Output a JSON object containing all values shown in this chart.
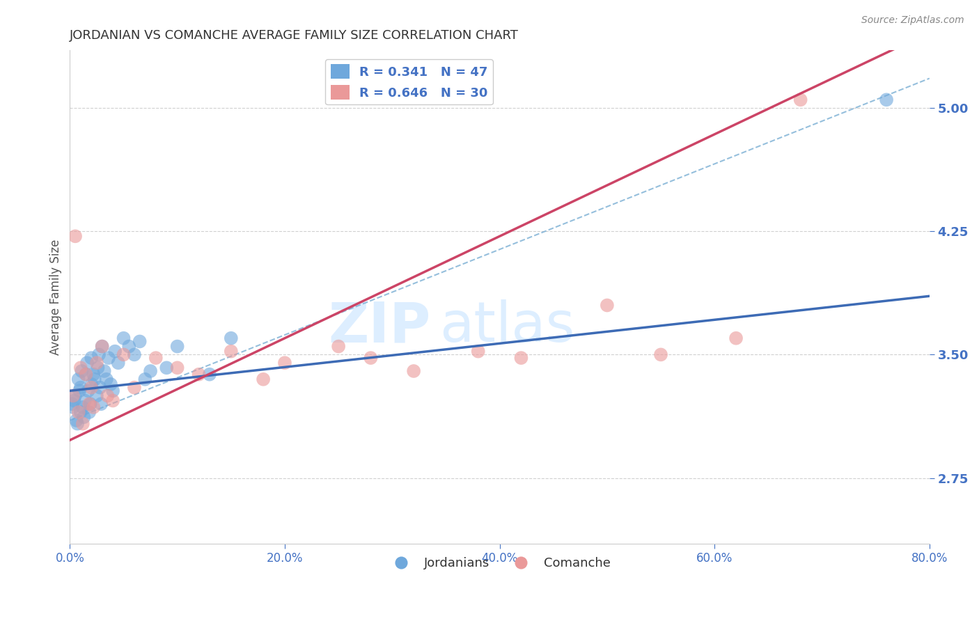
{
  "title": "JORDANIAN VS COMANCHE AVERAGE FAMILY SIZE CORRELATION CHART",
  "source": "Source: ZipAtlas.com",
  "ylabel": "Average Family Size",
  "xmin": 0.0,
  "xmax": 0.8,
  "ymin": 2.35,
  "ymax": 5.35,
  "yticks": [
    2.75,
    3.5,
    4.25,
    5.0
  ],
  "xticks": [
    0.0,
    0.2,
    0.4,
    0.6,
    0.8
  ],
  "xtick_labels": [
    "0.0%",
    "20.0%",
    "40.0%",
    "60.0%",
    "80.0%"
  ],
  "R_jordanian": 0.341,
  "N_jordanian": 47,
  "R_comanche": 0.646,
  "N_comanche": 30,
  "blue_color": "#6fa8dc",
  "pink_color": "#ea9999",
  "blue_line_color": "#3d6bb5",
  "pink_line_color": "#cc4466",
  "dashed_line_color": "#7bafd4",
  "axis_tick_color": "#4472c4",
  "title_color": "#333333",
  "grid_color": "#d0d0d0",
  "watermark_color": "#ddeeff",
  "legend_text_color": "#4472c4",
  "legend_R_color": "#4472c4",
  "legend_N_color": "#ff0000",
  "jordanian_x": [
    0.002,
    0.003,
    0.004,
    0.005,
    0.006,
    0.007,
    0.008,
    0.009,
    0.01,
    0.01,
    0.011,
    0.012,
    0.013,
    0.014,
    0.015,
    0.016,
    0.017,
    0.018,
    0.019,
    0.02,
    0.02,
    0.022,
    0.023,
    0.025,
    0.026,
    0.027,
    0.028,
    0.029,
    0.03,
    0.032,
    0.034,
    0.036,
    0.038,
    0.04,
    0.042,
    0.045,
    0.05,
    0.055,
    0.06,
    0.065,
    0.07,
    0.075,
    0.09,
    0.1,
    0.13,
    0.15,
    0.76
  ],
  "jordanian_y": [
    3.2,
    3.18,
    3.22,
    3.25,
    3.1,
    3.08,
    3.35,
    3.28,
    3.15,
    3.3,
    3.4,
    3.18,
    3.12,
    3.22,
    3.38,
    3.45,
    3.28,
    3.15,
    3.2,
    3.32,
    3.48,
    3.38,
    3.35,
    3.25,
    3.42,
    3.5,
    3.3,
    3.2,
    3.55,
    3.4,
    3.35,
    3.48,
    3.32,
    3.28,
    3.52,
    3.45,
    3.6,
    3.55,
    3.5,
    3.58,
    3.35,
    3.4,
    3.42,
    3.55,
    3.38,
    3.6,
    5.05
  ],
  "comanche_x": [
    0.003,
    0.005,
    0.008,
    0.01,
    0.012,
    0.015,
    0.018,
    0.02,
    0.022,
    0.025,
    0.03,
    0.035,
    0.04,
    0.05,
    0.06,
    0.08,
    0.1,
    0.12,
    0.15,
    0.18,
    0.2,
    0.25,
    0.28,
    0.32,
    0.38,
    0.42,
    0.5,
    0.55,
    0.62,
    0.68
  ],
  "comanche_y": [
    3.25,
    4.22,
    3.15,
    3.42,
    3.08,
    3.38,
    3.2,
    3.3,
    3.18,
    3.45,
    3.55,
    3.25,
    3.22,
    3.5,
    3.3,
    3.48,
    3.42,
    3.38,
    3.52,
    3.35,
    3.45,
    3.55,
    3.48,
    3.4,
    3.52,
    3.48,
    3.8,
    3.5,
    3.6,
    5.05
  ],
  "blue_intercept": 3.28,
  "blue_slope": 0.72,
  "pink_intercept": 2.98,
  "pink_slope": 3.1,
  "dashed_intercept": 3.1,
  "dashed_slope": 2.6
}
